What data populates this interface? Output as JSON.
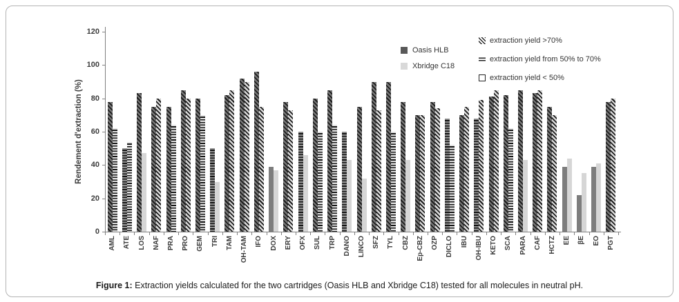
{
  "figure": {
    "caption_prefix": "Figure 1:",
    "caption_text": " Extraction yields calculated for the two cartridges (Oasis HLB and Xbridge C18) tested for all molecules in neutral pH."
  },
  "chart_data": {
    "type": "bar",
    "title": "",
    "xlabel": "",
    "ylabel": "Rendement d'extraction (%)",
    "ylim": [
      0,
      120
    ],
    "yticks": [
      0,
      20,
      40,
      60,
      80,
      100,
      120
    ],
    "grid": false,
    "legend_position": "top-right",
    "categories": [
      "AML",
      "ATE",
      "LOS",
      "NAF",
      "PRA",
      "PRO",
      "GEM",
      "TRI",
      "TAM",
      "OH-TAM",
      "IFO",
      "DOX",
      "ERY",
      "OFX",
      "SUL",
      "TRP",
      "DANO",
      "LINCO",
      "SFZ",
      "TYL",
      "CBZ",
      "Ep-CBZ",
      "OZP",
      "DICLO",
      "IBU",
      "OH-IBU",
      "KETO",
      "SCA",
      "PARA",
      "CAF",
      "HCTZ",
      "EE",
      "βE",
      "EO",
      "PGT"
    ],
    "series": [
      {
        "name": "Oasis HLB",
        "legend_color": "#595959",
        "values": [
          78,
          50,
          83,
          75,
          75,
          85,
          80,
          50,
          82,
          92,
          96,
          39,
          78,
          60,
          80,
          85,
          60,
          75,
          90,
          90,
          78,
          70,
          78,
          68,
          70,
          68,
          81,
          82,
          85,
          83,
          75,
          39,
          22,
          39,
          78
        ],
        "patterns": [
          "hatch",
          "hlines",
          "hatch",
          "hatch",
          "hatch",
          "hatch",
          "hatch",
          "hlines",
          "hatch",
          "hatch",
          "hatch",
          "plain",
          "hatch",
          "hlines",
          "hatch",
          "hatch",
          "hlines",
          "hatch",
          "hatch",
          "hatch",
          "hatch",
          "hatch",
          "hatch",
          "hlines",
          "hatch",
          "hlines",
          "hatch",
          "hatch",
          "hatch",
          "hatch",
          "hatch",
          "plain",
          "plain",
          "plain",
          "hatch"
        ]
      },
      {
        "name": "Xbridge C18",
        "legend_color": "#d9d9d9",
        "values": [
          62,
          54,
          47,
          80,
          64,
          80,
          70,
          30,
          85,
          90,
          75,
          37,
          73,
          46,
          60,
          64,
          43,
          32,
          73,
          60,
          43,
          70,
          74,
          52,
          75,
          79,
          85,
          62,
          43,
          85,
          70,
          44,
          35,
          41,
          80
        ],
        "patterns": [
          "hlines",
          "hlines",
          "plain",
          "hatch",
          "hlines",
          "hatch",
          "hlines",
          "plain",
          "hatch",
          "hatch",
          "hatch",
          "plain",
          "hatch",
          "plain",
          "hlines",
          "hlines",
          "plain",
          "plain",
          "hatch",
          "hlines",
          "plain",
          "hatch",
          "hatch",
          "hlines",
          "hatch",
          "hatch",
          "hatch",
          "hlines",
          "plain",
          "hatch",
          "hatch",
          "plain",
          "plain",
          "plain",
          "hatch"
        ]
      }
    ],
    "pattern_legend": [
      {
        "label": "extraction yield >70%",
        "pattern": "hatch"
      },
      {
        "label": "extraction yield from 50% to 70%",
        "pattern": "hlines"
      },
      {
        "label": "extraction yield < 50%",
        "pattern": "plain"
      }
    ]
  },
  "colors": {
    "dark_series": "#7d7d7d",
    "light_series": "#d6d6d6",
    "axis": "#7f7f7f",
    "text": "#3b3b3b"
  }
}
